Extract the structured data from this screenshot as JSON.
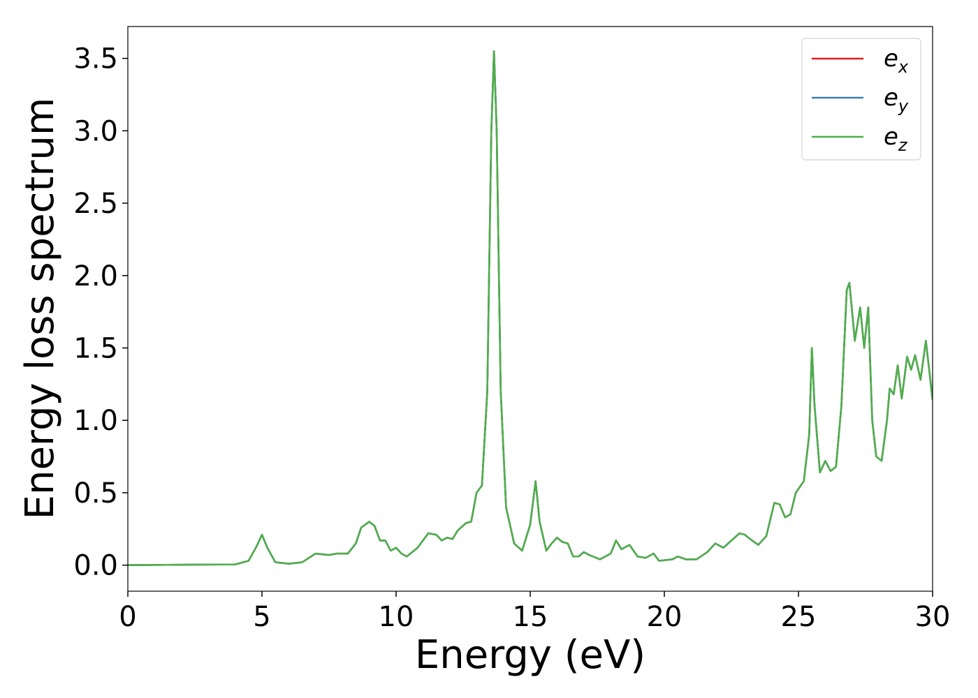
{
  "chart_data": {
    "type": "line",
    "xlabel": "Energy (eV)",
    "ylabel": "Energy loss spectrum",
    "x": [
      0,
      4,
      4.5,
      4.8,
      5.0,
      5.2,
      5.5,
      6,
      6.5,
      7,
      7.5,
      7.8,
      8.2,
      8.5,
      8.7,
      9.0,
      9.2,
      9.4,
      9.6,
      9.8,
      10.0,
      10.2,
      10.4,
      10.8,
      11.2,
      11.5,
      11.7,
      11.9,
      12.1,
      12.3,
      12.6,
      12.8,
      13.0,
      13.2,
      13.4,
      13.55,
      13.65,
      13.75,
      13.9,
      14.1,
      14.4,
      14.7,
      15.0,
      15.2,
      15.35,
      15.6,
      15.8,
      16.0,
      16.2,
      16.4,
      16.6,
      16.8,
      17.0,
      17.2,
      17.6,
      18.0,
      18.2,
      18.4,
      18.7,
      19.0,
      19.3,
      19.6,
      19.8,
      20.3,
      20.5,
      20.8,
      21.2,
      21.6,
      21.9,
      22.2,
      22.5,
      22.8,
      23.0,
      23.2,
      23.5,
      23.8,
      24.1,
      24.3,
      24.5,
      24.7,
      24.9,
      25.2,
      25.4,
      25.5,
      25.6,
      25.8,
      26.0,
      26.2,
      26.4,
      26.6,
      26.8,
      26.9,
      27.1,
      27.3,
      27.45,
      27.6,
      27.75,
      27.9,
      28.1,
      28.3,
      28.4,
      28.55,
      28.7,
      28.85,
      29.05,
      29.2,
      29.35,
      29.55,
      29.75,
      30.0
    ],
    "series": [
      {
        "name": "ex",
        "color": "#e41a1c",
        "values": [
          0,
          0.005,
          0.03,
          0.13,
          0.21,
          0.12,
          0.02,
          0.01,
          0.02,
          0.08,
          0.07,
          0.08,
          0.08,
          0.15,
          0.26,
          0.3,
          0.27,
          0.17,
          0.17,
          0.1,
          0.12,
          0.08,
          0.06,
          0.12,
          0.22,
          0.21,
          0.17,
          0.19,
          0.18,
          0.24,
          0.29,
          0.3,
          0.5,
          0.55,
          1.2,
          3.0,
          3.55,
          3.0,
          1.2,
          0.4,
          0.15,
          0.1,
          0.28,
          0.58,
          0.3,
          0.1,
          0.15,
          0.19,
          0.16,
          0.15,
          0.06,
          0.06,
          0.09,
          0.07,
          0.04,
          0.08,
          0.17,
          0.11,
          0.14,
          0.06,
          0.05,
          0.08,
          0.03,
          0.04,
          0.06,
          0.04,
          0.04,
          0.09,
          0.15,
          0.12,
          0.17,
          0.22,
          0.21,
          0.18,
          0.14,
          0.2,
          0.43,
          0.42,
          0.33,
          0.35,
          0.5,
          0.58,
          0.9,
          1.5,
          1.1,
          0.64,
          0.72,
          0.65,
          0.68,
          1.1,
          1.9,
          1.95,
          1.55,
          1.78,
          1.5,
          1.78,
          1.0,
          0.75,
          0.72,
          1.0,
          1.22,
          1.18,
          1.38,
          1.15,
          1.44,
          1.35,
          1.45,
          1.28,
          1.55,
          1.14
        ]
      },
      {
        "name": "ey",
        "color": "#377eb8",
        "values": [
          0,
          0.005,
          0.03,
          0.13,
          0.21,
          0.12,
          0.02,
          0.01,
          0.02,
          0.08,
          0.07,
          0.08,
          0.08,
          0.15,
          0.26,
          0.3,
          0.27,
          0.17,
          0.17,
          0.1,
          0.12,
          0.08,
          0.06,
          0.12,
          0.22,
          0.21,
          0.17,
          0.19,
          0.18,
          0.24,
          0.29,
          0.3,
          0.5,
          0.55,
          1.2,
          3.0,
          3.55,
          3.0,
          1.2,
          0.4,
          0.15,
          0.1,
          0.28,
          0.58,
          0.3,
          0.1,
          0.15,
          0.19,
          0.16,
          0.15,
          0.06,
          0.06,
          0.09,
          0.07,
          0.04,
          0.08,
          0.17,
          0.11,
          0.14,
          0.06,
          0.05,
          0.08,
          0.03,
          0.04,
          0.06,
          0.04,
          0.04,
          0.09,
          0.15,
          0.12,
          0.17,
          0.22,
          0.21,
          0.18,
          0.14,
          0.2,
          0.43,
          0.42,
          0.33,
          0.35,
          0.5,
          0.58,
          0.9,
          1.5,
          1.1,
          0.64,
          0.72,
          0.65,
          0.68,
          1.1,
          1.9,
          1.95,
          1.55,
          1.78,
          1.5,
          1.78,
          1.0,
          0.75,
          0.72,
          1.0,
          1.22,
          1.18,
          1.38,
          1.15,
          1.44,
          1.35,
          1.45,
          1.28,
          1.55,
          1.14
        ]
      },
      {
        "name": "ez",
        "color": "#4daf4a",
        "values": [
          0,
          0.005,
          0.03,
          0.13,
          0.21,
          0.12,
          0.02,
          0.01,
          0.02,
          0.08,
          0.07,
          0.08,
          0.08,
          0.15,
          0.26,
          0.3,
          0.27,
          0.17,
          0.17,
          0.1,
          0.12,
          0.08,
          0.06,
          0.12,
          0.22,
          0.21,
          0.17,
          0.19,
          0.18,
          0.24,
          0.29,
          0.3,
          0.5,
          0.55,
          1.2,
          3.0,
          3.55,
          3.0,
          1.2,
          0.4,
          0.15,
          0.1,
          0.28,
          0.58,
          0.3,
          0.1,
          0.15,
          0.19,
          0.16,
          0.15,
          0.06,
          0.06,
          0.09,
          0.07,
          0.04,
          0.08,
          0.17,
          0.11,
          0.14,
          0.06,
          0.05,
          0.08,
          0.03,
          0.04,
          0.06,
          0.04,
          0.04,
          0.09,
          0.15,
          0.12,
          0.17,
          0.22,
          0.21,
          0.18,
          0.14,
          0.2,
          0.43,
          0.42,
          0.33,
          0.35,
          0.5,
          0.58,
          0.9,
          1.5,
          1.1,
          0.64,
          0.72,
          0.65,
          0.68,
          1.1,
          1.9,
          1.95,
          1.55,
          1.78,
          1.5,
          1.78,
          1.0,
          0.75,
          0.72,
          1.0,
          1.22,
          1.18,
          1.38,
          1.15,
          1.44,
          1.35,
          1.45,
          1.28,
          1.55,
          1.14
        ]
      }
    ],
    "xlim": [
      0,
      30
    ],
    "xticks": [
      0,
      5,
      10,
      15,
      20,
      25,
      30
    ],
    "ylim": [
      -0.18,
      3.72
    ],
    "yticks": [
      {
        "value": 0,
        "label": "0.0"
      },
      0.5,
      {
        "value": 1,
        "label": "1.0"
      },
      1.5,
      {
        "value": 2,
        "label": "2.0"
      },
      2.5,
      {
        "value": 3,
        "label": "3.0"
      },
      3.5
    ],
    "grid": false,
    "legend": "upper right"
  }
}
